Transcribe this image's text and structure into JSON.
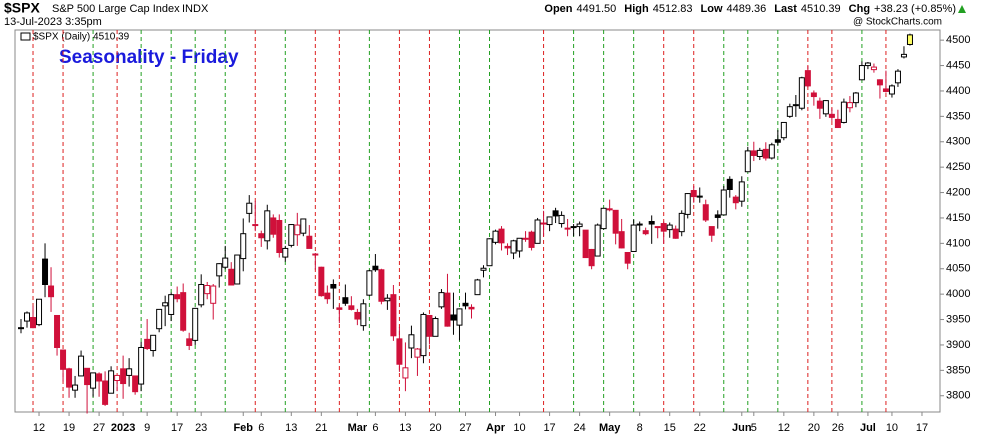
{
  "header": {
    "symbol": "$SPX",
    "name": "S&P 500 Large Cap Index",
    "exchange": "INDX",
    "datetime": "13-Jul-2023 3:35pm",
    "quote": [
      {
        "label": "Open",
        "value": "4491.50"
      },
      {
        "label": "High",
        "value": "4512.83"
      },
      {
        "label": "Low",
        "value": "4489.36"
      },
      {
        "label": "Last",
        "value": "4510.39"
      },
      {
        "label": "Chg",
        "value": "+38.23 (+0.85%)"
      }
    ],
    "watermark": "@ StockCharts.com"
  },
  "chart_data": {
    "type": "candlestick",
    "title": "Seasonality - Friday",
    "legend": "$SPX (Daily) 4510.39",
    "ylim": [
      3768,
      4520
    ],
    "yticks": [
      3800,
      3850,
      3900,
      3950,
      4000,
      4050,
      4100,
      4150,
      4200,
      4250,
      4300,
      4350,
      4400,
      4450,
      4500
    ],
    "xlim": [
      -1,
      153
    ],
    "xticks": [
      {
        "value": 3,
        "label": "12"
      },
      {
        "value": 8,
        "label": "19"
      },
      {
        "value": 13,
        "label": "27"
      },
      {
        "value": 17,
        "label": "2023"
      },
      {
        "value": 21,
        "label": "9"
      },
      {
        "value": 26,
        "label": "17"
      },
      {
        "value": 30,
        "label": "23"
      },
      {
        "value": 37,
        "label": "Feb"
      },
      {
        "value": 40,
        "label": "6"
      },
      {
        "value": 45,
        "label": "13"
      },
      {
        "value": 50,
        "label": "21"
      },
      {
        "value": 56,
        "label": "Mar"
      },
      {
        "value": 59,
        "label": "6"
      },
      {
        "value": 64,
        "label": "13"
      },
      {
        "value": 69,
        "label": "20"
      },
      {
        "value": 74,
        "label": "27"
      },
      {
        "value": 79,
        "label": "Apr"
      },
      {
        "value": 83,
        "label": "10"
      },
      {
        "value": 88,
        "label": "17"
      },
      {
        "value": 93,
        "label": "24"
      },
      {
        "value": 98,
        "label": "May"
      },
      {
        "value": 103,
        "label": "8"
      },
      {
        "value": 108,
        "label": "15"
      },
      {
        "value": 113,
        "label": "22"
      },
      {
        "value": 120,
        "label": "Jun"
      },
      {
        "value": 122,
        "label": "5"
      },
      {
        "value": 127,
        "label": "12"
      },
      {
        "value": 132,
        "label": "20"
      },
      {
        "value": 136,
        "label": "26"
      },
      {
        "value": 141,
        "label": "Jul"
      },
      {
        "value": 145,
        "label": "10"
      },
      {
        "value": 150,
        "label": "17"
      }
    ],
    "bold_ticks": [
      "2023",
      "Feb",
      "Mar",
      "Apr",
      "May",
      "Jun",
      "Jul"
    ],
    "fridays": [
      2,
      7,
      12,
      16,
      20,
      25,
      29,
      34,
      39,
      44,
      49,
      53,
      58,
      63,
      68,
      73,
      78,
      87,
      92,
      97,
      102,
      107,
      112,
      117,
      121,
      126,
      131,
      135,
      140,
      144
    ],
    "up_color": "#000000",
    "down_color": "#d0103a",
    "last_color": "#ffff66",
    "friday_up_color": "#22a022",
    "friday_down_color": "#dd2020",
    "candles": [
      [
        3934,
        3951,
        3923,
        3933
      ],
      [
        3947,
        3966,
        3934,
        3963
      ],
      [
        3954,
        3977,
        3933,
        3934
      ],
      [
        3940,
        3990,
        3937,
        3990
      ],
      [
        4069,
        4100,
        3994,
        4019
      ],
      [
        4016,
        4053,
        3965,
        3995
      ],
      [
        3958,
        3958,
        3879,
        3895
      ],
      [
        3890,
        3890,
        3828,
        3852
      ],
      [
        3853,
        3855,
        3796,
        3817
      ],
      [
        3811,
        3839,
        3796,
        3821
      ],
      [
        3839,
        3889,
        3839,
        3878
      ],
      [
        3854,
        3854,
        3765,
        3822
      ],
      [
        3815,
        3845,
        3798,
        3845
      ],
      [
        3843,
        3846,
        3798,
        3829
      ],
      [
        3829,
        3848,
        3780,
        3783
      ],
      [
        3805,
        3858,
        3805,
        3849
      ],
      [
        3830,
        3840,
        3809,
        3840
      ],
      [
        3853,
        3879,
        3794,
        3824
      ],
      [
        3840,
        3874,
        3818,
        3853
      ],
      [
        3839,
        3839,
        3802,
        3808
      ],
      [
        3823,
        3906,
        3809,
        3895
      ],
      [
        3911,
        3951,
        3890,
        3893
      ],
      [
        3889,
        3919,
        3877,
        3919
      ],
      [
        3932,
        3970,
        3925,
        3970
      ],
      [
        3977,
        3997,
        3937,
        3983
      ],
      [
        3960,
        4003,
        3947,
        3999
      ],
      [
        3999,
        4015,
        3984,
        3991
      ],
      [
        4003,
        4021,
        3926,
        3929
      ],
      [
        3912,
        3924,
        3890,
        3899
      ],
      [
        3909,
        3973,
        3900,
        3972
      ],
      [
        3979,
        4039,
        3974,
        4019
      ],
      [
        4001,
        4024,
        3990,
        4017
      ],
      [
        3982,
        4020,
        3950,
        4016
      ],
      [
        4036,
        4061,
        4013,
        4060
      ],
      [
        4053,
        4095,
        4049,
        4071
      ],
      [
        4049,
        4063,
        4018,
        4018
      ],
      [
        4020,
        4077,
        4020,
        4077
      ],
      [
        4070,
        4149,
        4045,
        4119
      ],
      [
        4159,
        4195,
        4141,
        4179
      ],
      [
        4137,
        4183,
        4124,
        4136
      ],
      [
        4119,
        4125,
        4093,
        4111
      ],
      [
        4105,
        4176,
        4088,
        4164
      ],
      [
        4150,
        4157,
        4111,
        4118
      ],
      [
        4145,
        4157,
        4072,
        4082
      ],
      [
        4073,
        4095,
        4064,
        4090
      ],
      [
        4096,
        4138,
        4092,
        4137
      ],
      [
        4117,
        4160,
        4095,
        4136
      ],
      [
        4120,
        4148,
        4114,
        4148
      ],
      [
        4114,
        4136,
        4092,
        4090
      ],
      [
        4077,
        4081,
        4048,
        4079
      ],
      [
        4053,
        4054,
        3995,
        3997
      ],
      [
        4002,
        4017,
        3981,
        3991
      ],
      [
        4019,
        4029,
        3971,
        4012
      ],
      [
        3973,
        3979,
        3943,
        3970
      ],
      [
        3993,
        4019,
        3977,
        3982
      ],
      [
        3977,
        3996,
        3968,
        3970
      ],
      [
        3964,
        3971,
        3939,
        3951
      ],
      [
        3938,
        3990,
        3928,
        3981
      ],
      [
        3998,
        4048,
        3996,
        4046
      ],
      [
        4055,
        4079,
        4044,
        4048
      ],
      [
        4048,
        4050,
        3980,
        3986
      ],
      [
        3987,
        4000,
        3969,
        3992
      ],
      [
        3999,
        4018,
        3908,
        3918
      ],
      [
        3912,
        3935,
        3847,
        3862
      ],
      [
        3835,
        3905,
        3809,
        3855
      ],
      [
        3894,
        3938,
        3874,
        3920
      ],
      [
        3876,
        3894,
        3839,
        3892
      ],
      [
        3879,
        3964,
        3864,
        3960
      ],
      [
        3958,
        3959,
        3901,
        3917
      ],
      [
        3917,
        3956,
        3917,
        3952
      ],
      [
        3975,
        4010,
        3971,
        4003
      ],
      [
        4002,
        4040,
        3936,
        3937
      ],
      [
        3959,
        4003,
        3920,
        3949
      ],
      [
        3939,
        3972,
        3909,
        3971
      ],
      [
        3982,
        4003,
        3970,
        3977
      ],
      [
        3974,
        3980,
        3952,
        3971
      ],
      [
        3999,
        4030,
        3999,
        4028
      ],
      [
        4047,
        4057,
        4033,
        4051
      ],
      [
        4056,
        4110,
        4056,
        4109
      ],
      [
        4102,
        4127,
        4098,
        4124
      ],
      [
        4128,
        4134,
        4086,
        4101
      ],
      [
        4094,
        4100,
        4077,
        4091
      ],
      [
        4081,
        4107,
        4069,
        4105
      ],
      [
        4085,
        4109,
        4072,
        4110
      ],
      [
        4110,
        4124,
        4103,
        4109
      ],
      [
        4122,
        4125,
        4086,
        4092
      ],
      [
        4100,
        4150,
        4100,
        4146
      ],
      [
        4140,
        4164,
        4114,
        4138
      ],
      [
        4137,
        4152,
        4124,
        4152
      ],
      [
        4164,
        4170,
        4140,
        4154
      ],
      [
        4139,
        4163,
        4131,
        4155
      ],
      [
        4130,
        4148,
        4114,
        4130
      ],
      [
        4132,
        4138,
        4114,
        4133
      ],
      [
        4133,
        4143,
        4114,
        4138
      ],
      [
        4126,
        4126,
        4072,
        4072
      ],
      [
        4088,
        4089,
        4049,
        4056
      ],
      [
        4075,
        4139,
        4075,
        4136
      ],
      [
        4129,
        4170,
        4127,
        4169
      ],
      [
        4166,
        4186,
        4163,
        4168
      ],
      [
        4165,
        4165,
        4098,
        4120
      ],
      [
        4123,
        4148,
        4090,
        4091
      ],
      [
        4082,
        4083,
        4049,
        4061
      ],
      [
        4084,
        4147,
        4084,
        4136
      ],
      [
        4136,
        4143,
        4124,
        4138
      ],
      [
        4125,
        4131,
        4116,
        4119
      ],
      [
        4143,
        4155,
        4099,
        4138
      ],
      [
        4133,
        4133,
        4110,
        4131
      ],
      [
        4139,
        4143,
        4099,
        4124
      ],
      [
        4127,
        4141,
        4111,
        4136
      ],
      [
        4128,
        4135,
        4109,
        4110
      ],
      [
        4123,
        4165,
        4114,
        4159
      ],
      [
        4157,
        4199,
        4149,
        4198
      ],
      [
        4204,
        4213,
        4180,
        4192
      ],
      [
        4191,
        4210,
        4180,
        4193
      ],
      [
        4176,
        4186,
        4142,
        4146
      ],
      [
        4133,
        4133,
        4103,
        4116
      ],
      [
        4156,
        4165,
        4129,
        4151
      ],
      [
        4156,
        4213,
        4155,
        4205
      ],
      [
        4226,
        4232,
        4190,
        4206
      ],
      [
        4191,
        4195,
        4167,
        4180
      ],
      [
        4183,
        4232,
        4172,
        4221
      ],
      [
        4241,
        4290,
        4241,
        4282
      ],
      [
        4282,
        4300,
        4262,
        4273
      ],
      [
        4271,
        4288,
        4264,
        4283
      ],
      [
        4285,
        4299,
        4263,
        4268
      ],
      [
        4268,
        4298,
        4265,
        4294
      ],
      [
        4304,
        4323,
        4293,
        4299
      ],
      [
        4308,
        4338,
        4303,
        4338
      ],
      [
        4350,
        4375,
        4347,
        4369
      ],
      [
        4372,
        4392,
        4349,
        4373
      ],
      [
        4366,
        4428,
        4362,
        4426
      ],
      [
        4440,
        4449,
        4407,
        4410
      ],
      [
        4396,
        4401,
        4371,
        4389
      ],
      [
        4380,
        4387,
        4345,
        4366
      ],
      [
        4355,
        4382,
        4349,
        4381
      ],
      [
        4354,
        4366,
        4341,
        4348
      ],
      [
        4344,
        4363,
        4328,
        4328
      ],
      [
        4338,
        4385,
        4336,
        4378
      ],
      [
        4367,
        4390,
        4358,
        4377
      ],
      [
        4377,
        4398,
        4368,
        4396
      ],
      [
        4422,
        4458,
        4422,
        4450
      ],
      [
        4450,
        4457,
        4443,
        4455
      ],
      [
        4442,
        4454,
        4436,
        4447
      ],
      [
        4422,
        4423,
        4385,
        4412
      ],
      [
        4404,
        4440,
        4397,
        4399
      ],
      [
        4394,
        4413,
        4387,
        4410
      ],
      [
        4416,
        4443,
        4408,
        4439
      ],
      [
        4467,
        4488,
        4464,
        4472
      ],
      [
        4491.5,
        4512.83,
        4489.36,
        4510.39
      ]
    ]
  }
}
